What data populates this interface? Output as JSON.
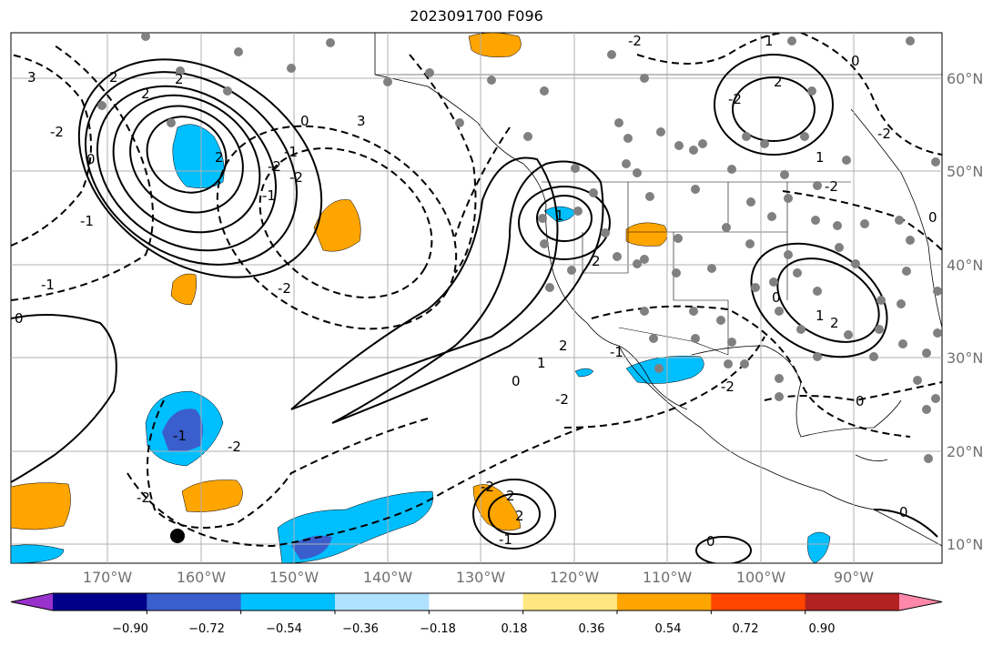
{
  "title": "2023091700 F096",
  "map": {
    "lat_labels": [
      "60°N",
      "50°N",
      "40°N",
      "30°N",
      "20°N",
      "10°N"
    ],
    "lon_labels": [
      "170°W",
      "160°W",
      "150°W",
      "140°W",
      "130°W",
      "120°W",
      "110°W",
      "100°W",
      "90°W"
    ],
    "contour_labels": [
      "2",
      "2",
      "3",
      "-1",
      "-2",
      "0",
      "-1",
      "2",
      "3",
      "-2",
      "-2",
      "-1",
      "0",
      "-1",
      "2",
      "-2",
      "-2",
      "-1",
      "0",
      "2",
      "1",
      "2",
      "0",
      "1",
      "-2",
      "-2",
      "0",
      "-1",
      "-2",
      "2",
      "1",
      "0",
      "-2",
      "1",
      "0",
      "0",
      "2",
      "-2",
      "2",
      "-1",
      "0",
      "1",
      "-2",
      "2",
      "0",
      "-2",
      "-2"
    ]
  },
  "colorbar": {
    "tick_labels": [
      "−0.90",
      "−0.72",
      "−0.54",
      "−0.36",
      "−0.18",
      "0.18",
      "0.36",
      "0.54",
      "0.72",
      "0.90"
    ],
    "colors": [
      "#9932cc",
      "#00008b",
      "#3a5fcd",
      "#00bfff",
      "#b0e2ff",
      "#ffffff",
      "#ffe680",
      "#ffa500",
      "#ff4500",
      "#b22222",
      "#ff88aa"
    ]
  },
  "colors": {
    "land_stations": "#808080",
    "positive_fill": "#ffa500",
    "negative_fill": "#00bfff",
    "strong_negative_fill": "#3a5fcd",
    "marker": "#000000"
  }
}
